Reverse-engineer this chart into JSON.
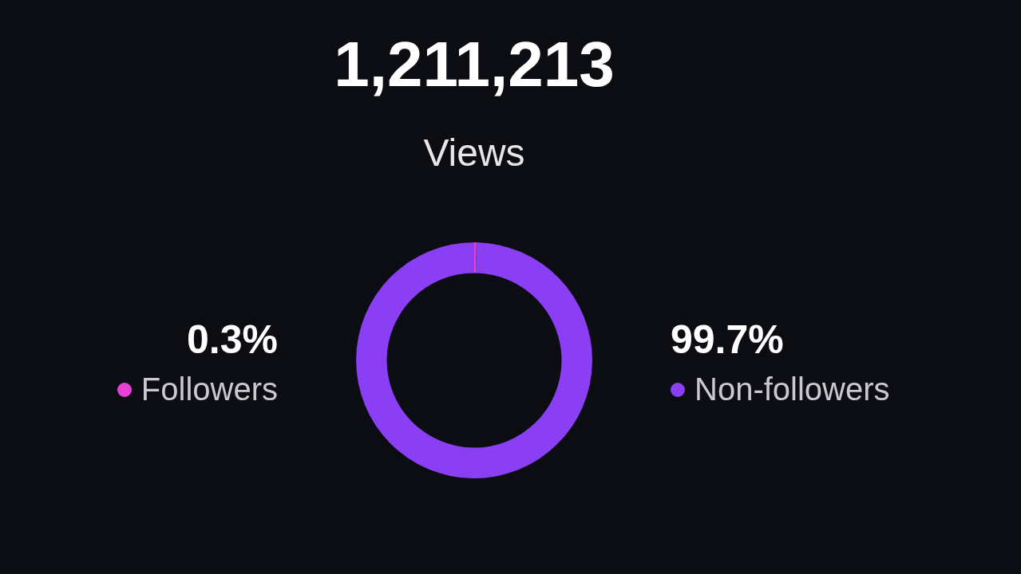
{
  "chart_data": {
    "type": "donut",
    "title": "1,211,213",
    "subtitle": "Views",
    "categories": [
      "Followers",
      "Non-followers"
    ],
    "values": [
      0.3,
      99.7
    ],
    "value_labels": [
      "0.3%",
      "99.7%"
    ],
    "colors": [
      "#e83fd6",
      "#8b3ff5"
    ],
    "legend": "right"
  }
}
